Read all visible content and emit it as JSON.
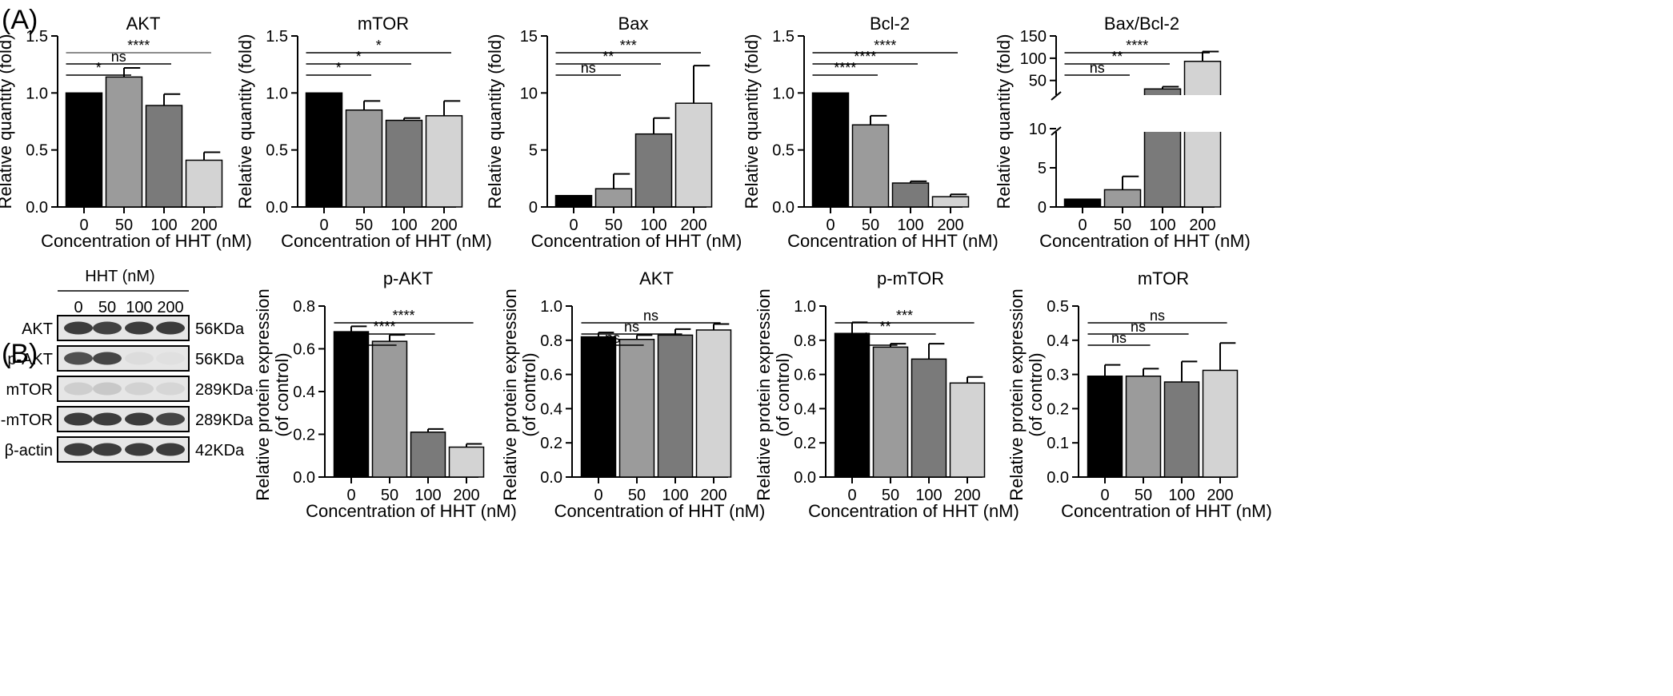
{
  "panels": [
    {
      "label": "(A)"
    },
    {
      "label": "(B)"
    }
  ],
  "colors": {
    "bar_fills": [
      "#000000",
      "#9b9b9b",
      "#7a7a7a",
      "#d3d3d3"
    ],
    "bar_stroke": "#000000",
    "bracket": "#000000",
    "bracket_long": "#666666",
    "axis": "#000000"
  },
  "western_blot": {
    "header": "HHT (nM)",
    "lanes": [
      "0",
      "50",
      "100",
      "200"
    ],
    "rows": [
      {
        "protein": "AKT",
        "size": "56KDa",
        "intensity": [
          0.85,
          0.82,
          0.85,
          0.85
        ]
      },
      {
        "protein": "p-AKT",
        "size": "56KDa",
        "intensity": [
          0.75,
          0.8,
          0.05,
          0.03
        ]
      },
      {
        "protein": "mTOR",
        "size": "289KDa",
        "intensity": [
          0.12,
          0.15,
          0.1,
          0.08
        ]
      },
      {
        "protein": "p-mTOR",
        "size": "289KDa",
        "intensity": [
          0.85,
          0.85,
          0.85,
          0.8
        ]
      },
      {
        "protein": "β-actin",
        "size": "42KDa",
        "intensity": [
          0.85,
          0.85,
          0.85,
          0.85
        ]
      }
    ]
  },
  "chart_data": [
    {
      "type": "bar",
      "title": "AKT",
      "xlabel": "Concentration of HHT (nM)",
      "ylabel": "Relative quantity (fold)",
      "categories": [
        "0",
        "50",
        "100",
        "200"
      ],
      "values": [
        1.0,
        1.14,
        0.89,
        0.41
      ],
      "errors": [
        0,
        0.08,
        0.1,
        0.07
      ],
      "ylim": [
        0,
        1.5
      ],
      "yticks": [
        "0.0",
        "0.5",
        "1.0",
        "1.5"
      ],
      "significance": [
        {
          "from": "0",
          "to": "50",
          "label": "*"
        },
        {
          "from": "0",
          "to": "100",
          "label": "ns"
        },
        {
          "from": "0",
          "to": "200",
          "label": "****"
        }
      ]
    },
    {
      "type": "bar",
      "title": "mTOR",
      "xlabel": "Concentration of HHT (nM)",
      "ylabel": "Relative quantity (fold)",
      "categories": [
        "0",
        "50",
        "100",
        "200"
      ],
      "values": [
        1.0,
        0.85,
        0.76,
        0.8
      ],
      "errors": [
        0,
        0.08,
        0.02,
        0.13
      ],
      "ylim": [
        0,
        1.5
      ],
      "yticks": [
        "0.0",
        "0.5",
        "1.0",
        "1.5"
      ],
      "significance": [
        {
          "from": "0",
          "to": "50",
          "label": "*"
        },
        {
          "from": "0",
          "to": "100",
          "label": "*"
        },
        {
          "from": "0",
          "to": "200",
          "label": "*"
        }
      ]
    },
    {
      "type": "bar",
      "title": "Bax",
      "xlabel": "Concentration of HHT (nM)",
      "ylabel": "Relative quantity (fold)",
      "categories": [
        "0",
        "50",
        "100",
        "200"
      ],
      "values": [
        1.0,
        1.6,
        6.4,
        9.1
      ],
      "errors": [
        0,
        1.3,
        1.4,
        3.3
      ],
      "ylim": [
        0,
        15
      ],
      "yticks": [
        "0",
        "5",
        "10",
        "15"
      ],
      "significance": [
        {
          "from": "0",
          "to": "50",
          "label": "ns"
        },
        {
          "from": "0",
          "to": "100",
          "label": "**"
        },
        {
          "from": "0",
          "to": "200",
          "label": "***"
        }
      ]
    },
    {
      "type": "bar",
      "title": "Bcl-2",
      "xlabel": "Concentration of HHT (nM)",
      "ylabel": "Relative quantity (fold)",
      "categories": [
        "0",
        "50",
        "100",
        "200"
      ],
      "values": [
        1.0,
        0.72,
        0.21,
        0.09
      ],
      "errors": [
        0,
        0.08,
        0.015,
        0.02
      ],
      "ylim": [
        0,
        1.5
      ],
      "yticks": [
        "0.0",
        "0.5",
        "1.0",
        "1.5"
      ],
      "significance": [
        {
          "from": "0",
          "to": "50",
          "label": "****"
        },
        {
          "from": "0",
          "to": "100",
          "label": "****"
        },
        {
          "from": "0",
          "to": "200",
          "label": "****"
        }
      ]
    },
    {
      "type": "bar",
      "title": "Bax/Bcl-2",
      "xlabel": "Concentration of HHT (nM)",
      "ylabel": "Relative quantity (fold)",
      "categories": [
        "0",
        "50",
        "100",
        "200"
      ],
      "values": [
        1.0,
        2.2,
        31,
        93
      ],
      "errors": [
        0,
        1.7,
        5,
        22
      ],
      "broken_axis": {
        "lower": [
          0,
          10
        ],
        "upper": [
          10,
          150
        ]
      },
      "yticks": [
        "0",
        "5",
        "10",
        "50",
        "100",
        "150"
      ],
      "significance": [
        {
          "from": "0",
          "to": "50",
          "label": "ns"
        },
        {
          "from": "0",
          "to": "100",
          "label": "**"
        },
        {
          "from": "0",
          "to": "200",
          "label": "****"
        }
      ]
    },
    {
      "type": "bar",
      "title": "p-AKT",
      "xlabel": "Concentration of HHT (nM)",
      "ylabel": [
        "Relative protein expression",
        "(of control)"
      ],
      "categories": [
        "0",
        "50",
        "100",
        "200"
      ],
      "values": [
        0.68,
        0.635,
        0.21,
        0.14
      ],
      "errors": [
        0.025,
        0.03,
        0.015,
        0.015
      ],
      "ylim": [
        0,
        0.8
      ],
      "yticks": [
        "0.0",
        "0.2",
        "0.4",
        "0.6",
        "0.8"
      ],
      "significance": [
        {
          "from": "0",
          "to": "50",
          "label": "*"
        },
        {
          "from": "0",
          "to": "100",
          "label": "****"
        },
        {
          "from": "0",
          "to": "200",
          "label": "****"
        }
      ]
    },
    {
      "type": "bar",
      "title": "AKT",
      "xlabel": "Concentration of HHT (nM)",
      "ylabel": [
        "Relative protein expression",
        "(of control)"
      ],
      "categories": [
        "0",
        "50",
        "100",
        "200"
      ],
      "values": [
        0.82,
        0.805,
        0.83,
        0.86
      ],
      "errors": [
        0.025,
        0.025,
        0.035,
        0.035
      ],
      "ylim": [
        0,
        1.0
      ],
      "yticks": [
        "0.0",
        "0.2",
        "0.4",
        "0.6",
        "0.8",
        "1.0"
      ],
      "significance": [
        {
          "from": "0",
          "to": "50",
          "label": "ns"
        },
        {
          "from": "0",
          "to": "100",
          "label": "ns"
        },
        {
          "from": "0",
          "to": "200",
          "label": "ns"
        }
      ]
    },
    {
      "type": "bar",
      "title": "p-mTOR",
      "xlabel": "Concentration of HHT (nM)",
      "ylabel": [
        "Relative protein expression",
        "(of control)"
      ],
      "categories": [
        "0",
        "50",
        "100",
        "200"
      ],
      "values": [
        0.84,
        0.76,
        0.69,
        0.55
      ],
      "errors": [
        0.065,
        0.02,
        0.09,
        0.035
      ],
      "ylim": [
        0,
        1.0
      ],
      "yticks": [
        "0.0",
        "0.2",
        "0.4",
        "0.6",
        "0.8",
        "1.0"
      ],
      "significance": [
        {
          "from": "0",
          "to": "50",
          "label": "*"
        },
        {
          "from": "0",
          "to": "100",
          "label": "**"
        },
        {
          "from": "0",
          "to": "200",
          "label": "***"
        }
      ]
    },
    {
      "type": "bar",
      "title": "mTOR",
      "xlabel": "Concentration of HHT (nM)",
      "ylabel": [
        "Relative protein expression",
        "(of control)"
      ],
      "categories": [
        "0",
        "50",
        "100",
        "200"
      ],
      "values": [
        0.295,
        0.295,
        0.278,
        0.312
      ],
      "errors": [
        0.033,
        0.022,
        0.06,
        0.08
      ],
      "ylim": [
        0,
        0.5
      ],
      "yticks": [
        "0.0",
        "0.1",
        "0.2",
        "0.3",
        "0.4",
        "0.5"
      ],
      "significance": [
        {
          "from": "0",
          "to": "50",
          "label": "ns"
        },
        {
          "from": "0",
          "to": "100",
          "label": "ns"
        },
        {
          "from": "0",
          "to": "200",
          "label": "ns"
        }
      ]
    }
  ]
}
